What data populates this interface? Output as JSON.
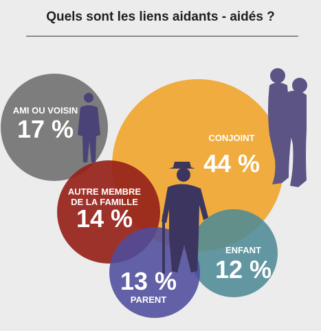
{
  "title": "Quels sont les liens aidants - aidés ?",
  "colors": {
    "background": "#ececec",
    "text": "#ffffff",
    "silhouette": "#4a4378"
  },
  "chart_data": {
    "type": "bubble",
    "title": "Quels sont les liens aidants - aidés ?",
    "unit": "%",
    "series": [
      {
        "label": "AMI OU VOISIN",
        "value": 17,
        "display": "17 %",
        "color": "#7d7d7d"
      },
      {
        "label": "CONJOINT",
        "value": 44,
        "display": "44 %",
        "color": "#f0ac3e"
      },
      {
        "label": "AUTRE MEMBRE DE LA FAMILLE",
        "value": 14,
        "display": "14 %",
        "color": "#962219"
      },
      {
        "label": "ENFANT",
        "value": 12,
        "display": "12 %",
        "color": "#4e8b96"
      },
      {
        "label": "PARENT",
        "value": 13,
        "display": "13 %",
        "color": "#4f4c9c"
      }
    ]
  },
  "icons": [
    "standing-man-icon",
    "embracing-couple-icon",
    "elderly-man-with-cane-icon"
  ]
}
